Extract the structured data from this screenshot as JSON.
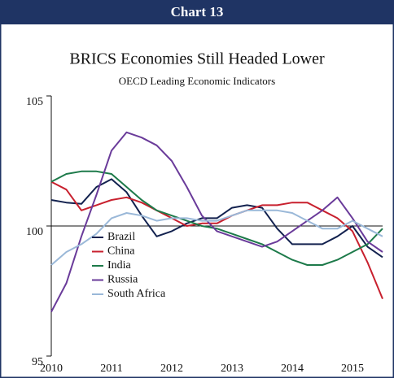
{
  "header": {
    "label": "Chart 13"
  },
  "chart_data": {
    "type": "line",
    "title": "BRICS Economies Still Headed Lower",
    "subtitle": "OECD Leading Economic Indicators",
    "x": [
      2010,
      2010.25,
      2010.5,
      2010.75,
      2011,
      2011.25,
      2011.5,
      2011.75,
      2012,
      2012.25,
      2012.5,
      2012.75,
      2013,
      2013.25,
      2013.5,
      2013.75,
      2014,
      2014.25,
      2014.5,
      2014.75,
      2015,
      2015.25,
      2015.5
    ],
    "xlim": [
      2010,
      2015.5
    ],
    "xticks": [
      2010,
      2011,
      2012,
      2013,
      2014,
      2015
    ],
    "ylim": [
      95,
      105
    ],
    "yticks": [
      95,
      100,
      105
    ],
    "reference_line": 100,
    "legend": "lower left",
    "series": [
      {
        "name": "Brazil",
        "color": "#13224f",
        "values": [
          101.0,
          100.9,
          100.85,
          101.5,
          101.8,
          101.3,
          100.4,
          99.6,
          99.8,
          100.1,
          100.3,
          100.3,
          100.7,
          100.8,
          100.7,
          99.9,
          99.3,
          99.3,
          99.3,
          99.6,
          100.0,
          99.2,
          98.8
        ]
      },
      {
        "name": "China",
        "color": "#c8202e",
        "values": [
          101.7,
          101.4,
          100.6,
          100.8,
          101.0,
          101.1,
          100.9,
          100.6,
          100.3,
          100.0,
          100.1,
          100.1,
          100.4,
          100.6,
          100.8,
          100.8,
          100.9,
          100.9,
          100.6,
          100.3,
          99.8,
          98.6,
          97.2
        ]
      },
      {
        "name": "India",
        "color": "#1d7a4a",
        "values": [
          101.7,
          102.0,
          102.1,
          102.1,
          102.0,
          101.5,
          101.0,
          100.6,
          100.4,
          100.2,
          100.0,
          99.9,
          99.7,
          99.5,
          99.3,
          99.0,
          98.7,
          98.5,
          98.5,
          98.7,
          99.0,
          99.3,
          99.9
        ]
      },
      {
        "name": "Russia",
        "color": "#6a3b9a",
        "values": [
          96.7,
          97.8,
          99.6,
          101.2,
          102.9,
          103.6,
          103.4,
          103.1,
          102.5,
          101.5,
          100.4,
          99.8,
          99.6,
          99.4,
          99.2,
          99.4,
          99.8,
          100.2,
          100.6,
          101.1,
          100.3,
          99.4,
          99.0
        ]
      },
      {
        "name": "South Africa",
        "color": "#9ab8d8",
        "values": [
          98.5,
          99.0,
          99.3,
          99.7,
          100.3,
          100.5,
          100.4,
          100.2,
          100.3,
          100.3,
          100.2,
          100.2,
          100.4,
          100.6,
          100.6,
          100.6,
          100.5,
          100.2,
          99.9,
          99.9,
          100.2,
          99.9,
          99.6
        ]
      }
    ]
  }
}
